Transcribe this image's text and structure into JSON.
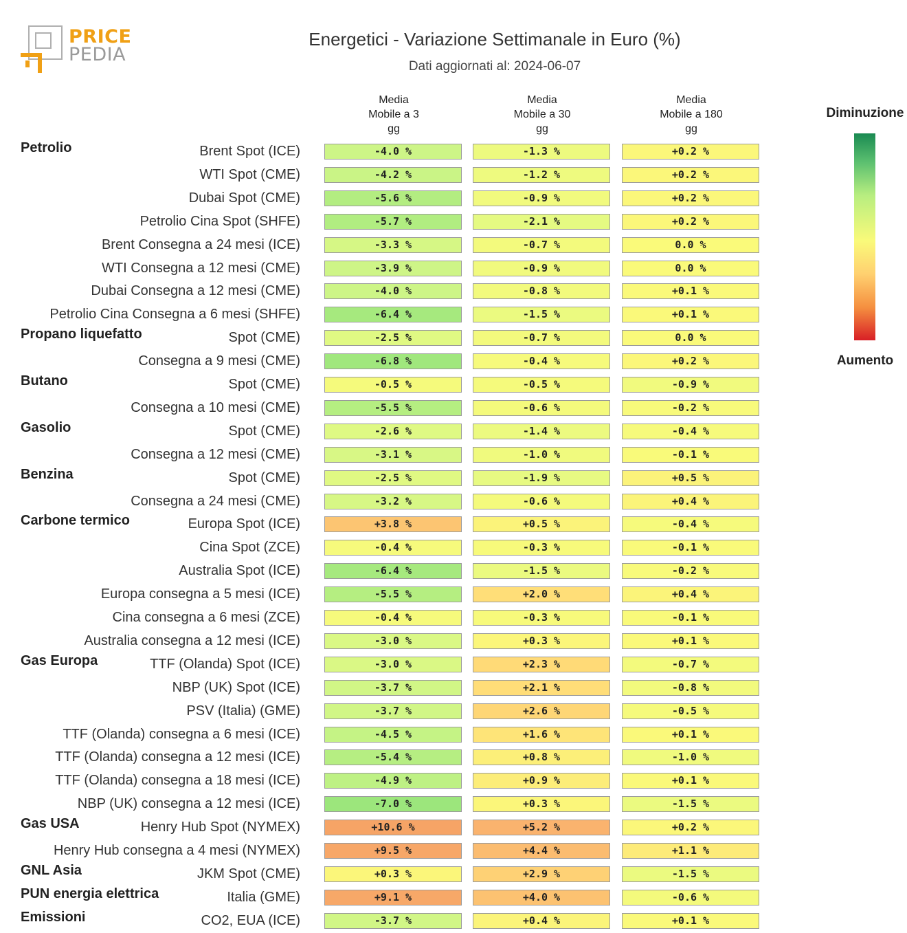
{
  "chart_data": {
    "type": "heatmap",
    "title": "Energetici - Variazione Settimanale in Euro (%)",
    "subtitle": "Dati aggiornati al: 2024-06-07",
    "columns": [
      "Media\nMobile a 3\ngg",
      "Media\nMobile a 30\ngg",
      "Media\nMobile a 180\ngg"
    ],
    "legend": {
      "top": "Diminuzione",
      "bottom": "Aumento"
    },
    "colors": {
      "green": "#1a8a52",
      "yellow": "#fafa7a",
      "orange": "#f59040",
      "red": "#d81f26"
    },
    "rows": [
      {
        "group": "Petrolio",
        "label": "Brent Spot (ICE)",
        "values": [
          -4.0,
          -1.3,
          0.2
        ],
        "texts": [
          "-4.0 %",
          "-1.3 %",
          "+0.2 %"
        ]
      },
      {
        "group": "",
        "label": "WTI Spot (CME)",
        "values": [
          -4.2,
          -1.2,
          0.2
        ],
        "texts": [
          "-4.2 %",
          "-1.2 %",
          "+0.2 %"
        ]
      },
      {
        "group": "",
        "label": "Dubai Spot (CME)",
        "values": [
          -5.6,
          -0.9,
          0.2
        ],
        "texts": [
          "-5.6 %",
          "-0.9 %",
          "+0.2 %"
        ]
      },
      {
        "group": "",
        "label": "Petrolio Cina Spot (SHFE)",
        "values": [
          -5.7,
          -2.1,
          0.2
        ],
        "texts": [
          "-5.7 %",
          "-2.1 %",
          "+0.2 %"
        ]
      },
      {
        "group": "",
        "label": "Brent Consegna a 24 mesi (ICE)",
        "values": [
          -3.3,
          -0.7,
          0.0
        ],
        "texts": [
          "-3.3 %",
          "-0.7 %",
          "0.0 %"
        ]
      },
      {
        "group": "",
        "label": "WTI Consegna a 12 mesi (CME)",
        "values": [
          -3.9,
          -0.9,
          0.0
        ],
        "texts": [
          "-3.9 %",
          "-0.9 %",
          "0.0 %"
        ]
      },
      {
        "group": "",
        "label": "Dubai Consegna a 12 mesi (CME)",
        "values": [
          -4.0,
          -0.8,
          0.1
        ],
        "texts": [
          "-4.0 %",
          "-0.8 %",
          "+0.1 %"
        ]
      },
      {
        "group": "",
        "label": "Petrolio Cina Consegna a 6 mesi (SHFE)",
        "values": [
          -6.4,
          -1.5,
          0.1
        ],
        "texts": [
          "-6.4 %",
          "-1.5 %",
          "+0.1 %"
        ]
      },
      {
        "group": "Propano liquefatto",
        "label": "Spot (CME)",
        "values": [
          -2.5,
          -0.7,
          0.0
        ],
        "texts": [
          "-2.5 %",
          "-0.7 %",
          "0.0 %"
        ]
      },
      {
        "group": "",
        "label": "Consegna a 9 mesi (CME)",
        "values": [
          -6.8,
          -0.4,
          0.2
        ],
        "texts": [
          "-6.8 %",
          "-0.4 %",
          "+0.2 %"
        ]
      },
      {
        "group": "Butano",
        "label": "Spot (CME)",
        "values": [
          -0.5,
          -0.5,
          -0.9
        ],
        "texts": [
          "-0.5 %",
          "-0.5 %",
          "-0.9 %"
        ]
      },
      {
        "group": "",
        "label": "Consegna a 10 mesi (CME)",
        "values": [
          -5.5,
          -0.6,
          -0.2
        ],
        "texts": [
          "-5.5 %",
          "-0.6 %",
          "-0.2 %"
        ]
      },
      {
        "group": "Gasolio",
        "label": "Spot (CME)",
        "values": [
          -2.6,
          -1.4,
          -0.4
        ],
        "texts": [
          "-2.6 %",
          "-1.4 %",
          "-0.4 %"
        ]
      },
      {
        "group": "",
        "label": "Consegna a 12 mesi (CME)",
        "values": [
          -3.1,
          -1.0,
          -0.1
        ],
        "texts": [
          "-3.1 %",
          "-1.0 %",
          "-0.1 %"
        ]
      },
      {
        "group": "Benzina",
        "label": "Spot (CME)",
        "values": [
          -2.5,
          -1.9,
          0.5
        ],
        "texts": [
          "-2.5 %",
          "-1.9 %",
          "+0.5 %"
        ]
      },
      {
        "group": "",
        "label": "Consegna a 24 mesi (CME)",
        "values": [
          -3.2,
          -0.6,
          0.4
        ],
        "texts": [
          "-3.2 %",
          "-0.6 %",
          "+0.4 %"
        ]
      },
      {
        "group": "Carbone termico",
        "label": "Europa Spot (ICE)",
        "values": [
          3.8,
          0.5,
          -0.4
        ],
        "texts": [
          "+3.8 %",
          "+0.5 %",
          "-0.4 %"
        ]
      },
      {
        "group": "",
        "label": "Cina Spot (ZCE)",
        "values": [
          -0.4,
          -0.3,
          -0.1
        ],
        "texts": [
          "-0.4 %",
          "-0.3 %",
          "-0.1 %"
        ]
      },
      {
        "group": "",
        "label": "Australia Spot (ICE)",
        "values": [
          -6.4,
          -1.5,
          -0.2
        ],
        "texts": [
          "-6.4 %",
          "-1.5 %",
          "-0.2 %"
        ]
      },
      {
        "group": "",
        "label": "Europa consegna a 5 mesi (ICE)",
        "values": [
          -5.5,
          2.0,
          0.4
        ],
        "texts": [
          "-5.5 %",
          "+2.0 %",
          "+0.4 %"
        ]
      },
      {
        "group": "",
        "label": "Cina consegna a 6 mesi (ZCE)",
        "values": [
          -0.4,
          -0.3,
          -0.1
        ],
        "texts": [
          "-0.4 %",
          "-0.3 %",
          "-0.1 %"
        ]
      },
      {
        "group": "",
        "label": "Australia consegna a 12 mesi (ICE)",
        "values": [
          -3.0,
          0.3,
          0.1
        ],
        "texts": [
          "-3.0 %",
          "+0.3 %",
          "+0.1 %"
        ]
      },
      {
        "group": "Gas Europa",
        "label": "TTF (Olanda) Spot (ICE)",
        "values": [
          -3.0,
          2.3,
          -0.7
        ],
        "texts": [
          "-3.0 %",
          "+2.3 %",
          "-0.7 %"
        ]
      },
      {
        "group": "",
        "label": "NBP (UK) Spot (ICE)",
        "values": [
          -3.7,
          2.1,
          -0.8
        ],
        "texts": [
          "-3.7 %",
          "+2.1 %",
          "-0.8 %"
        ]
      },
      {
        "group": "",
        "label": "PSV (Italia) (GME)",
        "values": [
          -3.7,
          2.6,
          -0.5
        ],
        "texts": [
          "-3.7 %",
          "+2.6 %",
          "-0.5 %"
        ]
      },
      {
        "group": "",
        "label": "TTF (Olanda) consegna a 6 mesi (ICE)",
        "values": [
          -4.5,
          1.6,
          0.1
        ],
        "texts": [
          "-4.5 %",
          "+1.6 %",
          "+0.1 %"
        ]
      },
      {
        "group": "",
        "label": "TTF (Olanda) consegna a 12 mesi (ICE)",
        "values": [
          -5.4,
          0.8,
          -1.0
        ],
        "texts": [
          "-5.4 %",
          "+0.8 %",
          "-1.0 %"
        ]
      },
      {
        "group": "",
        "label": "TTF (Olanda) consegna a 18 mesi (ICE)",
        "values": [
          -4.9,
          0.9,
          0.1
        ],
        "texts": [
          "-4.9 %",
          "+0.9 %",
          "+0.1 %"
        ]
      },
      {
        "group": "",
        "label": "NBP (UK) consegna a 12 mesi (ICE)",
        "values": [
          -7.0,
          0.3,
          -1.5
        ],
        "texts": [
          "-7.0 %",
          "+0.3 %",
          "-1.5 %"
        ]
      },
      {
        "group": "Gas USA",
        "label": "Henry Hub Spot (NYMEX)",
        "values": [
          10.6,
          5.2,
          0.2
        ],
        "texts": [
          "+10.6 %",
          "+5.2 %",
          "+0.2 %"
        ]
      },
      {
        "group": "",
        "label": "Henry Hub consegna a 4 mesi (NYMEX)",
        "values": [
          9.5,
          4.4,
          1.1
        ],
        "texts": [
          "+9.5 %",
          "+4.4 %",
          "+1.1 %"
        ]
      },
      {
        "group": "GNL Asia",
        "label": "JKM Spot (CME)",
        "values": [
          0.3,
          2.9,
          -1.5
        ],
        "texts": [
          "+0.3 %",
          "+2.9 %",
          "-1.5 %"
        ]
      },
      {
        "group": "PUN energia elettrica",
        "label": "Italia (GME)",
        "values": [
          9.1,
          4.0,
          -0.6
        ],
        "texts": [
          "+9.1 %",
          "+4.0 %",
          "-0.6 %"
        ]
      },
      {
        "group": "Emissioni",
        "label": "CO2, EUA (ICE)",
        "values": [
          -3.7,
          0.4,
          0.1
        ],
        "texts": [
          "-3.7 %",
          "+0.4 %",
          "+0.1 %"
        ]
      }
    ]
  },
  "logo": {
    "word1": "PRICE",
    "word2": "PEDIA"
  }
}
